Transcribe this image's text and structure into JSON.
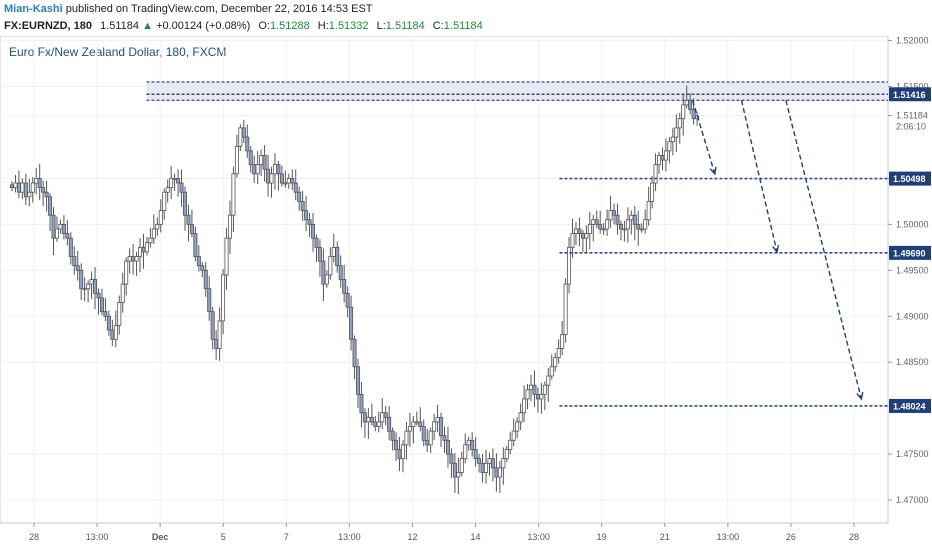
{
  "header": {
    "author": "Mian-Kashi",
    "published": "published on TradingView.com, December 22, 2016 14:53 EST",
    "symbol": "FX:EURNZD, 180",
    "last": "1.51184",
    "arrow": "▲",
    "change": "+0.00124 (+0.08%)",
    "o_label": "O:",
    "o": "1.51288",
    "h_label": "H:",
    "h": "1.51332",
    "l_label": "L:",
    "l": "1.51184",
    "c_label": "C:",
    "c": "1.51184"
  },
  "chart_data": {
    "type": "candlestick",
    "title": "Euro Fx/New Zealand Dollar, 180, FXCM",
    "ylim": [
      1.4675,
      1.5205
    ],
    "y_ticks": [
      "1.52000",
      "1.51500",
      "1.51184",
      "1.50500",
      "1.50000",
      "1.49500",
      "1.49000",
      "1.48500",
      "1.47500",
      "1.47000"
    ],
    "y_tick_values": [
      1.52,
      1.515,
      1.51184,
      1.505,
      1.5,
      1.495,
      1.49,
      1.485,
      1.475,
      1.47
    ],
    "countdown": "2:06:10",
    "x_ticks": [
      "28",
      "13:00",
      "Dec",
      "5",
      "7",
      "13:00",
      "12",
      "14",
      "13:00",
      "19",
      "21",
      "13:00",
      "26",
      "28"
    ],
    "x_tick_bold": [
      false,
      false,
      true,
      false,
      false,
      false,
      false,
      false,
      false,
      false,
      false,
      false,
      false,
      false
    ],
    "levels": [
      {
        "label": "1.51416",
        "value": 1.51416,
        "start": 0.165
      },
      {
        "label": "1.50498",
        "value": 1.50498,
        "start": 0.63
      },
      {
        "label": "1.49690",
        "value": 1.4969,
        "start": 0.63
      },
      {
        "label": "1.48024",
        "value": 1.48024,
        "start": 0.63
      }
    ],
    "resistance_band": [
      1.5135,
      1.5155
    ],
    "projections": [
      {
        "from": [
          0.78,
          1.5135
        ],
        "to": [
          0.805,
          1.5055
        ]
      },
      {
        "from": [
          0.835,
          1.5135
        ],
        "to": [
          0.875,
          1.497
        ]
      },
      {
        "from": [
          0.885,
          1.5135
        ],
        "to": [
          0.97,
          1.481
        ]
      }
    ],
    "closes": [
      1.504,
      1.5045,
      1.5035,
      1.5045,
      1.503,
      1.5035,
      1.5045,
      1.505,
      1.504,
      1.5035,
      1.503,
      1.501,
      1.4985,
      1.4995,
      1.5,
      1.499,
      1.4985,
      1.4965,
      1.4955,
      1.495,
      1.493,
      1.493,
      1.4935,
      1.494,
      1.4925,
      1.492,
      1.4905,
      1.49,
      1.4885,
      1.4875,
      1.489,
      1.4915,
      1.4935,
      1.496,
      1.4965,
      1.496,
      1.4965,
      1.4975,
      1.497,
      1.498,
      1.4985,
      1.4995,
      1.5,
      1.5015,
      1.5035,
      1.504,
      1.505,
      1.505,
      1.5045,
      1.5035,
      1.501,
      1.5,
      1.499,
      1.4965,
      1.4955,
      1.495,
      1.493,
      1.4905,
      1.4875,
      1.4865,
      1.4895,
      1.4945,
      1.4985,
      1.501,
      1.5055,
      1.5085,
      1.5105,
      1.5095,
      1.508,
      1.5065,
      1.5055,
      1.5065,
      1.5075,
      1.506,
      1.5045,
      1.5055,
      1.5065,
      1.5055,
      1.5045,
      1.5045,
      1.505,
      1.5045,
      1.5035,
      1.5025,
      1.5015,
      1.5005,
      1.5,
      1.4985,
      1.4975,
      1.496,
      1.4935,
      1.4945,
      1.4965,
      1.4975,
      1.4955,
      1.494,
      1.4925,
      1.491,
      1.4875,
      1.4845,
      1.4815,
      1.4795,
      1.4785,
      1.479,
      1.4785,
      1.478,
      1.4785,
      1.4795,
      1.479,
      1.4775,
      1.4765,
      1.4755,
      1.4745,
      1.476,
      1.4775,
      1.478,
      1.4785,
      1.4785,
      1.478,
      1.4765,
      1.476,
      1.4775,
      1.4785,
      1.479,
      1.477,
      1.4765,
      1.475,
      1.474,
      1.4725,
      1.473,
      1.4745,
      1.476,
      1.4765,
      1.4755,
      1.4745,
      1.474,
      1.473,
      1.474,
      1.4745,
      1.4735,
      1.4725,
      1.4735,
      1.4745,
      1.4755,
      1.4765,
      1.4775,
      1.4785,
      1.4795,
      1.481,
      1.482,
      1.4825,
      1.4815,
      1.481,
      1.4815,
      1.4825,
      1.4835,
      1.4845,
      1.4855,
      1.4865,
      1.488,
      1.4935,
      1.4975,
      1.499,
      1.4995,
      1.499,
      1.4985,
      1.499,
      1.5,
      1.5005,
      1.5,
      1.4995,
      1.4995,
      1.5005,
      1.5015,
      1.501,
      1.5,
      1.4995,
      1.4995,
      1.5005,
      1.501,
      1.5,
      1.4995,
      1.4995,
      1.5005,
      1.5025,
      1.5045,
      1.5065,
      1.5075,
      1.507,
      1.508,
      1.509,
      1.5095,
      1.5105,
      1.5115,
      1.513,
      1.5135,
      1.5125,
      1.5115,
      1.5118
    ]
  }
}
